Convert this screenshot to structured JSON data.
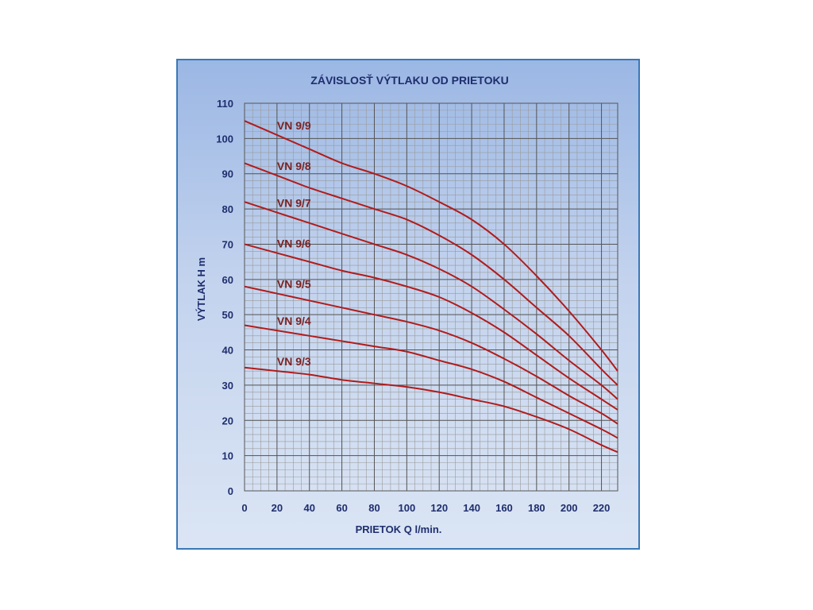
{
  "chart_data": {
    "type": "line",
    "title": "ZÁVISLOSŤ  VÝTLAKU  OD  PRIETOKU",
    "xlabel": "PRIETOK  Q  l/min.",
    "ylabel": "VÝTLAK  H  m",
    "xlim": [
      0,
      230
    ],
    "ylim": [
      0,
      110
    ],
    "xticks": [
      0,
      20,
      40,
      60,
      80,
      100,
      120,
      140,
      160,
      180,
      200,
      220
    ],
    "yticks": [
      0,
      10,
      20,
      30,
      40,
      50,
      60,
      70,
      80,
      90,
      100,
      110
    ],
    "grid": true,
    "colors": {
      "line": "#b01c1c",
      "major_grid": "#555555",
      "minor_grid": "#9a9a9a",
      "label": "#7a2323",
      "axis_text": "#1f2e6e"
    },
    "series": [
      {
        "name": "VN 9/9",
        "x": [
          0,
          20,
          40,
          60,
          80,
          100,
          120,
          140,
          160,
          180,
          200,
          220,
          230
        ],
        "y": [
          105,
          101,
          97,
          93,
          90,
          86.5,
          82,
          77,
          70,
          61,
          51,
          40,
          34
        ]
      },
      {
        "name": "VN 9/8",
        "x": [
          0,
          20,
          40,
          60,
          80,
          100,
          120,
          140,
          160,
          180,
          200,
          220,
          230
        ],
        "y": [
          93,
          89.5,
          86,
          83,
          80,
          77,
          72.5,
          67,
          60,
          52,
          44,
          34.5,
          30
        ]
      },
      {
        "name": "VN 9/7",
        "x": [
          0,
          20,
          40,
          60,
          80,
          100,
          120,
          140,
          160,
          180,
          200,
          220,
          230
        ],
        "y": [
          82,
          79,
          76,
          73,
          70,
          67,
          63,
          58,
          51.5,
          44.5,
          37,
          30,
          26
        ]
      },
      {
        "name": "VN 9/6",
        "x": [
          0,
          20,
          40,
          60,
          80,
          100,
          120,
          140,
          160,
          180,
          200,
          220,
          230
        ],
        "y": [
          70,
          67.5,
          65,
          62.5,
          60.5,
          58,
          55,
          50.5,
          45,
          38.5,
          32,
          26,
          23
        ]
      },
      {
        "name": "VN 9/5",
        "x": [
          0,
          20,
          40,
          60,
          80,
          100,
          120,
          140,
          160,
          180,
          200,
          220,
          230
        ],
        "y": [
          58,
          56,
          54,
          52,
          50,
          48,
          45.5,
          42,
          37.5,
          32.5,
          27,
          22,
          19
        ]
      },
      {
        "name": "VN 9/4",
        "x": [
          0,
          20,
          40,
          60,
          80,
          100,
          120,
          140,
          160,
          180,
          200,
          220,
          230
        ],
        "y": [
          47,
          45.5,
          44,
          42.5,
          41,
          39.5,
          37,
          34.5,
          31,
          26.5,
          22,
          17.5,
          15
        ]
      },
      {
        "name": "VN 9/3",
        "x": [
          0,
          20,
          40,
          60,
          80,
          100,
          120,
          140,
          160,
          180,
          200,
          220,
          230
        ],
        "y": [
          35,
          34,
          33,
          31.5,
          30.5,
          29.5,
          28,
          26,
          24,
          21,
          17.5,
          13,
          11
        ]
      }
    ]
  }
}
